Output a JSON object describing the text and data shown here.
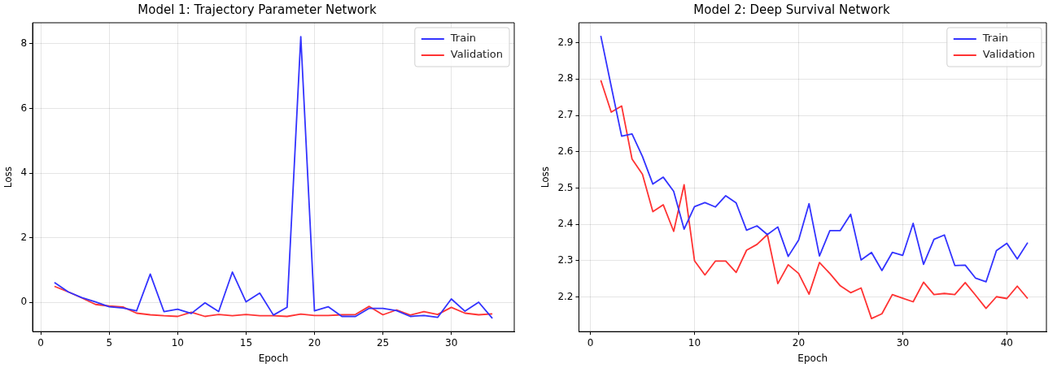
{
  "chart_data": [
    {
      "type": "line",
      "title": "Model 1: Trajectory Parameter Network",
      "xlabel": "Epoch",
      "ylabel": "Loss",
      "x": [
        1,
        2,
        3,
        4,
        5,
        6,
        7,
        8,
        9,
        10,
        11,
        12,
        13,
        14,
        15,
        16,
        17,
        18,
        19,
        20,
        21,
        22,
        23,
        24,
        25,
        26,
        27,
        28,
        29,
        30,
        31,
        32,
        33
      ],
      "series": [
        {
          "name": "Train",
          "color": "#3333ff",
          "values": [
            0.62,
            0.33,
            0.15,
            0.02,
            -0.13,
            -0.17,
            -0.26,
            0.88,
            -0.28,
            -0.21,
            -0.34,
            -0.01,
            -0.28,
            0.94,
            0.02,
            0.29,
            -0.39,
            -0.15,
            8.22,
            -0.26,
            -0.13,
            -0.43,
            -0.43,
            -0.18,
            -0.18,
            -0.25,
            -0.43,
            -0.4,
            -0.46,
            0.11,
            -0.27,
            0.01,
            -0.49
          ]
        },
        {
          "name": "Validation",
          "color": "#ff3333",
          "values": [
            0.5,
            0.33,
            0.14,
            -0.06,
            -0.11,
            -0.14,
            -0.33,
            -0.38,
            -0.41,
            -0.43,
            -0.3,
            -0.43,
            -0.37,
            -0.41,
            -0.37,
            -0.41,
            -0.41,
            -0.43,
            -0.36,
            -0.4,
            -0.4,
            -0.38,
            -0.37,
            -0.12,
            -0.38,
            -0.23,
            -0.39,
            -0.28,
            -0.37,
            -0.15,
            -0.33,
            -0.38,
            -0.35
          ]
        }
      ],
      "xlim": [
        -0.6,
        34.6
      ],
      "xticks": [
        0,
        5,
        10,
        15,
        20,
        25,
        30
      ],
      "ylim": [
        -0.9,
        8.65
      ],
      "yticks": [
        0,
        2,
        4,
        6,
        8
      ],
      "grid": true,
      "legend": "top right",
      "marker": "none",
      "line_style": "solid"
    },
    {
      "type": "line",
      "title": "Model 2: Deep Survival Network",
      "xlabel": "Epoch",
      "ylabel": "Loss",
      "x": [
        1,
        2,
        3,
        4,
        5,
        6,
        7,
        8,
        9,
        10,
        11,
        12,
        13,
        14,
        15,
        16,
        17,
        18,
        19,
        20,
        21,
        22,
        23,
        24,
        25,
        26,
        27,
        28,
        29,
        30,
        31,
        32,
        33,
        34,
        35,
        36,
        37,
        38,
        39,
        40,
        41,
        42
      ],
      "series": [
        {
          "name": "Train",
          "color": "#3333ff",
          "values": [
            2.919,
            2.78,
            2.643,
            2.649,
            2.587,
            2.511,
            2.53,
            2.491,
            2.387,
            2.449,
            2.46,
            2.448,
            2.479,
            2.459,
            2.384,
            2.396,
            2.372,
            2.393,
            2.312,
            2.357,
            2.457,
            2.313,
            2.383,
            2.383,
            2.428,
            2.302,
            2.323,
            2.273,
            2.323,
            2.315,
            2.403,
            2.29,
            2.359,
            2.371,
            2.287,
            2.288,
            2.252,
            2.242,
            2.328,
            2.348,
            2.305,
            2.35
          ]
        },
        {
          "name": "Validation",
          "color": "#ff3333",
          "values": [
            2.797,
            2.709,
            2.726,
            2.58,
            2.538,
            2.435,
            2.454,
            2.381,
            2.509,
            2.3,
            2.261,
            2.299,
            2.299,
            2.268,
            2.329,
            2.345,
            2.372,
            2.237,
            2.289,
            2.265,
            2.208,
            2.295,
            2.265,
            2.231,
            2.212,
            2.225,
            2.141,
            2.154,
            2.207,
            2.197,
            2.187,
            2.241,
            2.207,
            2.21,
            2.207,
            2.24,
            2.205,
            2.169,
            2.201,
            2.196,
            2.23,
            2.196
          ]
        }
      ],
      "xlim": [
        -1.1,
        43.8
      ],
      "xticks": [
        0,
        10,
        20,
        30,
        40
      ],
      "ylim": [
        2.105,
        2.955
      ],
      "yticks": [
        2.2,
        2.3,
        2.4,
        2.5,
        2.6,
        2.7,
        2.8,
        2.9
      ],
      "grid": true,
      "legend": "top right",
      "marker": "none",
      "line_style": "solid"
    }
  ]
}
